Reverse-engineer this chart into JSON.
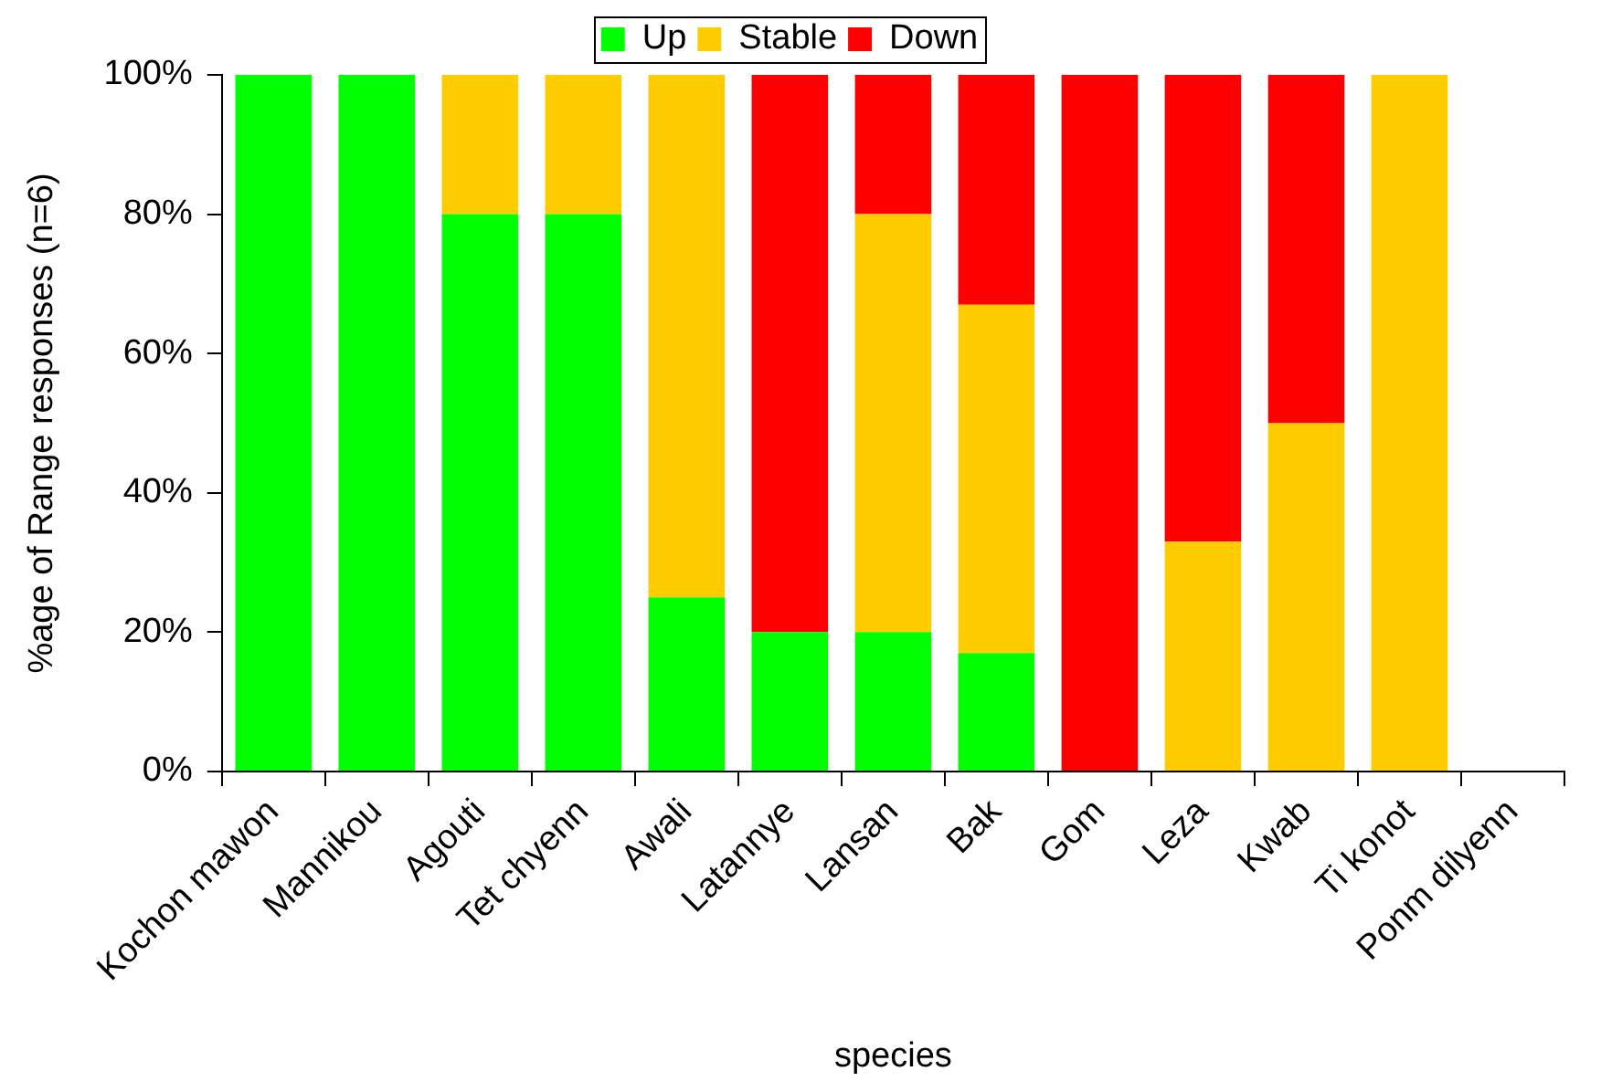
{
  "chart_data": {
    "type": "bar",
    "stacked": true,
    "xlabel": "species",
    "ylabel": "%age of Range responses (n=6)",
    "categories": [
      "Kochon mawon",
      "Mannikou",
      "Agouti",
      "Tet chyenn",
      "Awali",
      "Latannye",
      "Lansan",
      "Bak",
      "Gom",
      "Leza",
      "Kwab",
      "Ti konot",
      "Ponm dilyenn"
    ],
    "series": [
      {
        "name": "Up",
        "color": "#00ff00",
        "values": [
          100,
          100,
          80,
          80,
          25,
          20,
          20,
          17,
          0,
          0,
          0,
          0,
          0
        ]
      },
      {
        "name": "Stable",
        "color": "#ffcc00",
        "values": [
          0,
          0,
          20,
          20,
          75,
          0,
          60,
          50,
          0,
          33,
          50,
          100,
          0
        ]
      },
      {
        "name": "Down",
        "color": "#ff0000",
        "values": [
          0,
          0,
          0,
          0,
          0,
          80,
          20,
          33,
          100,
          67,
          50,
          0,
          0
        ]
      }
    ],
    "ylim": [
      0,
      100
    ],
    "yticks": [
      {
        "value": 0,
        "label": "0%"
      },
      {
        "value": 20,
        "label": "20%"
      },
      {
        "value": 40,
        "label": "40%"
      },
      {
        "value": 60,
        "label": "60%"
      },
      {
        "value": 80,
        "label": "80%"
      },
      {
        "value": 100,
        "label": "100%"
      }
    ],
    "grid": false,
    "legend": "top"
  }
}
